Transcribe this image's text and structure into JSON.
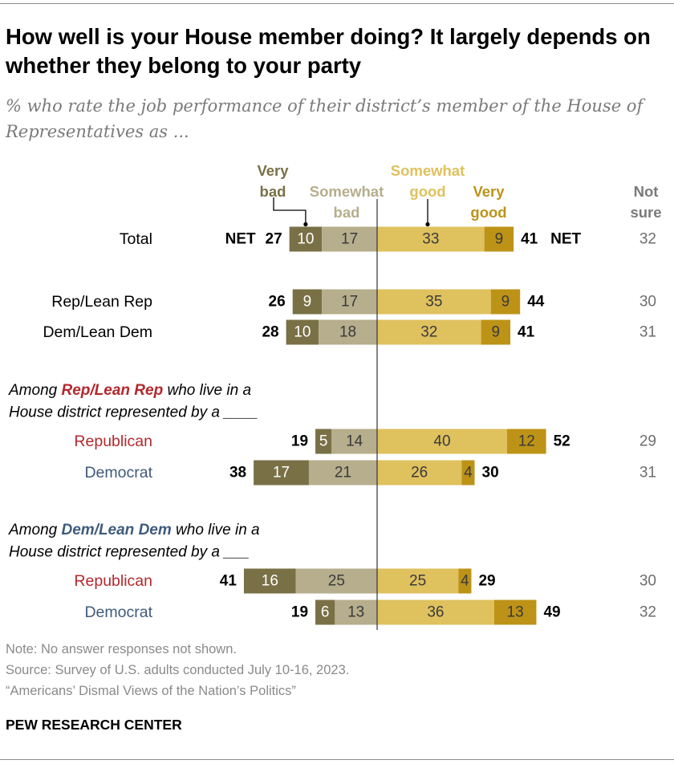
{
  "title": "How well is your House member doing? It largely depends on whether they belong to your party",
  "subtitle": "% who rate the job performance of their district’s member of the House of Representatives as ...",
  "legend": {
    "very_bad": "Very bad",
    "somewhat_bad": "Somewhat bad",
    "somewhat_good": "Somewhat good",
    "very_good": "Very good",
    "not_sure": "Not sure"
  },
  "net_label": "NET",
  "chart_data": {
    "type": "bar",
    "orientation": "horizontal-diverging",
    "colors": {
      "very_bad": "#7a7046",
      "somewhat_bad": "#b6ae8c",
      "somewhat_good": "#dfc15e",
      "very_good": "#bd9317",
      "group_rep": "#b3282d",
      "group_dem": "#3f5a7c"
    },
    "groups": [
      {
        "heading_pre": "",
        "heading_party": "",
        "heading_post": "",
        "heading_line2": "",
        "heading_party_color": ""
      },
      {
        "heading_pre": "Among ",
        "heading_party": "Rep/Lean Rep",
        "heading_post": " who live in a",
        "heading_line2": "House district represented by a ____",
        "heading_party_color": "#b3282d"
      },
      {
        "heading_pre": "Among ",
        "heading_party": "Dem/Lean Dem",
        "heading_post": " who live in a",
        "heading_line2": "House district represented by a ___",
        "heading_party_color": "#3f5a7c"
      }
    ],
    "rows": [
      {
        "label": "Total",
        "label_color": "#000000",
        "very_bad": 10,
        "somewhat_bad": 17,
        "somewhat_good": 33,
        "very_good": 9,
        "net_bad": 27,
        "net_good": 41,
        "not_sure": 32
      },
      {
        "label": "Rep/Lean Rep",
        "label_color": "#000000",
        "very_bad": 9,
        "somewhat_bad": 17,
        "somewhat_good": 35,
        "very_good": 9,
        "net_bad": 26,
        "net_good": 44,
        "not_sure": 30
      },
      {
        "label": "Dem/Lean Dem",
        "label_color": "#000000",
        "very_bad": 10,
        "somewhat_bad": 18,
        "somewhat_good": 32,
        "very_good": 9,
        "net_bad": 28,
        "net_good": 41,
        "not_sure": 31
      },
      {
        "label": "Republican",
        "label_color": "#b3282d",
        "very_bad": 5,
        "somewhat_bad": 14,
        "somewhat_good": 40,
        "very_good": 12,
        "net_bad": 19,
        "net_good": 52,
        "not_sure": 29
      },
      {
        "label": "Democrat",
        "label_color": "#3f5a7c",
        "very_bad": 17,
        "somewhat_bad": 21,
        "somewhat_good": 26,
        "very_good": 4,
        "net_bad": 38,
        "net_good": 30,
        "not_sure": 31
      },
      {
        "label": "Republican",
        "label_color": "#b3282d",
        "very_bad": 16,
        "somewhat_bad": 25,
        "somewhat_good": 25,
        "very_good": 4,
        "net_bad": 41,
        "net_good": 29,
        "not_sure": 30
      },
      {
        "label": "Democrat",
        "label_color": "#3f5a7c",
        "very_bad": 6,
        "somewhat_bad": 13,
        "somewhat_good": 36,
        "very_good": 13,
        "net_bad": 19,
        "net_good": 49,
        "not_sure": 32
      }
    ]
  },
  "footer": {
    "note": "Note: No answer responses not shown.",
    "source": "Source: Survey of U.S. adults conducted July 10-16, 2023.",
    "report": "“Americans’ Dismal Views of the Nation’s Politics”",
    "brand": "PEW RESEARCH CENTER"
  }
}
